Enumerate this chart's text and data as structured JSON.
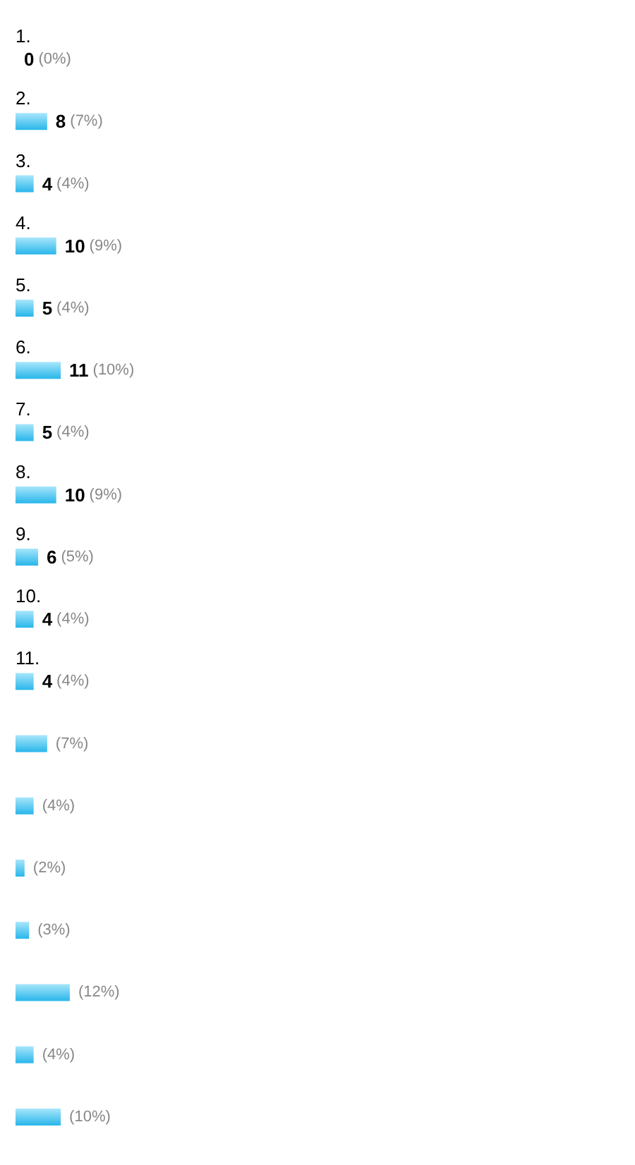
{
  "chart_data": {
    "type": "bar",
    "orientation": "horizontal",
    "categories": [
      "1.",
      "2.",
      "3.",
      "4.",
      "5.",
      "6.",
      "7.",
      "8.",
      "9.",
      "10.",
      "11.",
      null,
      null,
      null,
      null,
      null,
      null,
      null
    ],
    "values": [
      0,
      7,
      4,
      9,
      4,
      10,
      4,
      9,
      5,
      4,
      4,
      7,
      4,
      2,
      3,
      12,
      4,
      10
    ],
    "value_labels": [
      "0 (0%)",
      "8 (7%)",
      "4 (4%)",
      "10 (9%)",
      "5 (4%)",
      "11 (10%)",
      "5 (4%)",
      "10 (9%)",
      "6 (5%)",
      "4 (4%)",
      "4 (4%)",
      "(7%)",
      "(4%)",
      "(2%)",
      "(3%)",
      "(12%)",
      "(4%)",
      "(10%)"
    ],
    "color": "#29b6ea",
    "grid": false
  }
}
